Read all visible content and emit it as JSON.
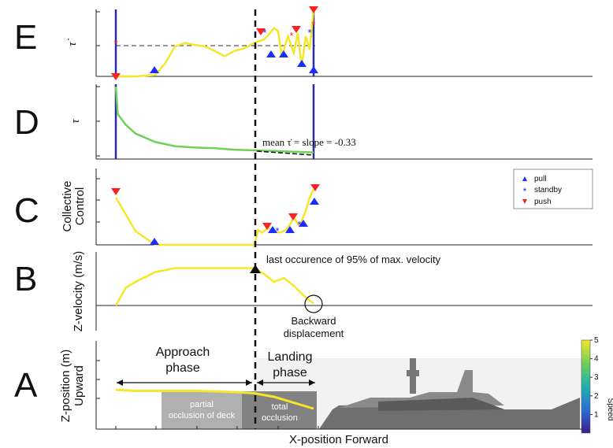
{
  "chart_data": {
    "type": "line",
    "panels": [
      {
        "id": "E",
        "letter": "E",
        "ylabel": "τ̇"
      },
      {
        "id": "D",
        "letter": "D",
        "ylabel": "τ",
        "annotation": "mean τ̇ = slope = -0.33"
      },
      {
        "id": "C",
        "letter": "C",
        "ylabel_line1": "Collective",
        "ylabel_line2": "Control",
        "legend": [
          {
            "marker": "triangle-up",
            "label": "pull",
            "color": "#1a2cff"
          },
          {
            "marker": "asterisk",
            "label": "standby",
            "color": "#1a2cff"
          },
          {
            "marker": "triangle-down",
            "label": "push",
            "color": "#ff2020"
          }
        ]
      },
      {
        "id": "B",
        "letter": "B",
        "ylabel": "Z-velocity (m/s)",
        "annotation": "last occurence of 95% of max. velocity",
        "annotation2_line1": "Backward",
        "annotation2_line2": "displacement"
      },
      {
        "id": "A",
        "letter": "A",
        "ylabel_line1": "Z-position (m)",
        "ylabel_line2": "Upward",
        "xlabel": "X-position Forward",
        "phase_labels": {
          "approach_line1": "Approach",
          "approach_line2": "phase",
          "landing_line1": "Landing",
          "landing_line2": "phase"
        },
        "occlusion_labels": {
          "partial_line1": "partial",
          "partial_line2": "occlusion of deck",
          "total_line1": "total",
          "total_line2": "occlusion"
        }
      }
    ],
    "colorbar": {
      "label": "Speed",
      "ticks": [
        1,
        2,
        3,
        4,
        5
      ],
      "range": [
        0,
        5
      ],
      "colormap": [
        "#3b1c8c",
        "#2a6fd4",
        "#1fb0b0",
        "#6fd05a",
        "#f5e62a"
      ]
    },
    "series_E": {
      "x": [
        0,
        0.1,
        0.2,
        0.25,
        0.3,
        0.35,
        0.4,
        0.45,
        0.5,
        0.55,
        0.6,
        0.65,
        0.7,
        0.75,
        0.8,
        0.82,
        0.84,
        0.87,
        0.9,
        0.92,
        0.94,
        0.96,
        0.98,
        1.0
      ],
      "y": [
        0.0,
        0.0,
        0.02,
        0.2,
        0.45,
        0.5,
        0.47,
        0.45,
        0.38,
        0.3,
        0.38,
        0.42,
        0.5,
        0.55,
        0.72,
        0.68,
        0.3,
        0.6,
        0.35,
        0.65,
        0.15,
        0.6,
        0.4,
        1.0
      ]
    },
    "series_D": {
      "x": [
        0,
        0.01,
        0.05,
        0.1,
        0.2,
        0.3,
        0.4,
        0.5,
        0.6,
        0.7,
        0.8,
        0.9,
        1.0
      ],
      "y": [
        1.0,
        0.6,
        0.45,
        0.32,
        0.2,
        0.14,
        0.12,
        0.11,
        0.09,
        0.08,
        0.07,
        0.06,
        0.05
      ]
    },
    "series_C": {
      "x": [
        0,
        0.05,
        0.1,
        0.2,
        0.3,
        0.4,
        0.5,
        0.6,
        0.7,
        0.72,
        0.74,
        0.77,
        0.8,
        0.83,
        0.86,
        0.88,
        0.9,
        0.93,
        0.96,
        0.98,
        1.0
      ],
      "y": [
        0.7,
        0.45,
        0.2,
        0.0,
        0.0,
        0.0,
        0.0,
        0.0,
        0.0,
        0.22,
        0.18,
        0.25,
        0.2,
        0.18,
        0.22,
        0.3,
        0.4,
        0.28,
        0.5,
        0.7,
        0.82
      ]
    },
    "series_B": {
      "x": [
        0,
        0.05,
        0.1,
        0.2,
        0.3,
        0.4,
        0.5,
        0.6,
        0.7,
        0.75,
        0.8,
        0.85,
        0.9,
        0.95,
        1.0
      ],
      "y": [
        0.0,
        0.45,
        0.6,
        0.85,
        0.95,
        0.95,
        0.95,
        0.95,
        0.95,
        0.8,
        0.6,
        0.7,
        0.5,
        0.25,
        0.05
      ]
    },
    "series_A": {
      "x": [
        0,
        0.1,
        0.2,
        0.3,
        0.4,
        0.5,
        0.6,
        0.7,
        0.8,
        0.9,
        1.0
      ],
      "y": [
        1.0,
        0.95,
        0.95,
        0.95,
        0.95,
        0.93,
        0.9,
        0.85,
        0.7,
        0.45,
        0.2
      ]
    }
  }
}
